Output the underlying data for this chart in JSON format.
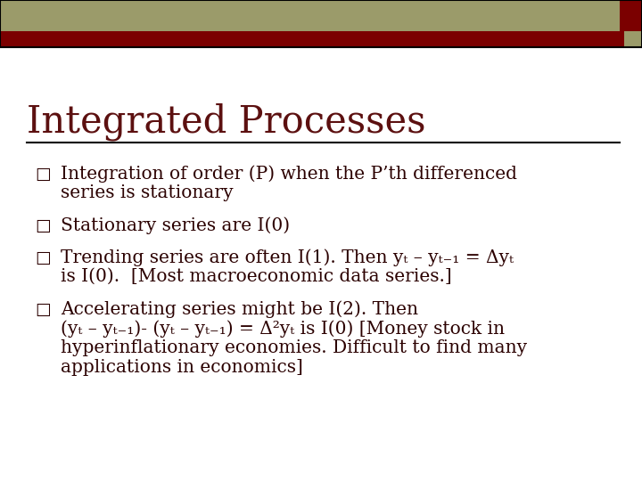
{
  "title": "Integrated Processes",
  "background_color": "#ffffff",
  "header_bar_color": "#9B9B6A",
  "header_accent_color": "#7B0000",
  "title_color": "#5C1010",
  "text_color": "#2B0000",
  "bullet_color": "#2B0000",
  "title_fontsize": 30,
  "bullet_fontsize": 14.5,
  "bullet_char": "□",
  "bullets": [
    {
      "lines": [
        "Integration of order (P) when the P’th differenced",
        "series is stationary"
      ]
    },
    {
      "lines": [
        "Stationary series are I(0)"
      ]
    },
    {
      "lines": [
        "Trending series are often I(1). Then yₜ – yₜ₋₁ = Δyₜ",
        "is I(0).  [Most macroeconomic data series.]"
      ]
    },
    {
      "lines": [
        "Accelerating series might be I(2). Then",
        "(yₜ – yₜ₋₁)- (yₜ – yₜ₋₁) = Δ²yₜ is I(0) [Money stock in",
        "hyperinflationary economies. Difficult to find many",
        "applications in economics]"
      ]
    }
  ]
}
